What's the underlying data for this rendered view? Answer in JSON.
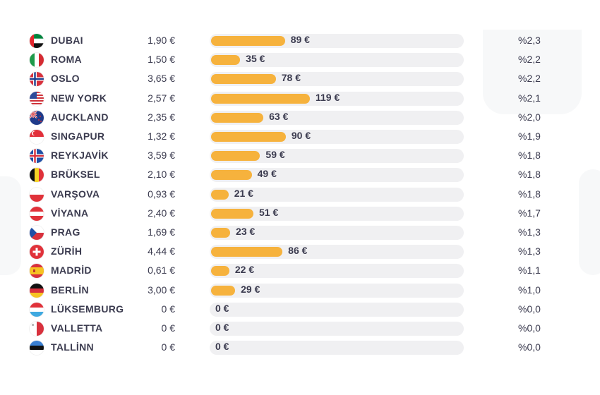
{
  "chart_data": {
    "type": "bar",
    "colors": {
      "bar": "#f6b23d",
      "track": "#f0f0f2",
      "text": "#3b3b4f"
    },
    "xlim": [
      0,
      119
    ],
    "rows": [
      {
        "city": "DUBAI",
        "price": "1,90 €",
        "value": 89,
        "value_label": "89 €",
        "pct": "%2,3",
        "flag": "uae-flag-icon"
      },
      {
        "city": "ROMA",
        "price": "1,50 €",
        "value": 35,
        "value_label": "35 €",
        "pct": "%2,2",
        "flag": "italy-flag-icon"
      },
      {
        "city": "OSLO",
        "price": "3,65 €",
        "value": 78,
        "value_label": "78 €",
        "pct": "%2,2",
        "flag": "norway-flag-icon"
      },
      {
        "city": "NEW YORK",
        "price": "2,57 €",
        "value": 119,
        "value_label": "119 €",
        "pct": "%2,1",
        "flag": "usa-flag-icon"
      },
      {
        "city": "AUCKLAND",
        "price": "2,35 €",
        "value": 63,
        "value_label": "63 €",
        "pct": "%2,0",
        "flag": "new-zealand-flag-icon"
      },
      {
        "city": "SINGAPUR",
        "price": "1,32 €",
        "value": 90,
        "value_label": "90 €",
        "pct": "%1,9",
        "flag": "singapore-flag-icon"
      },
      {
        "city": "REYKJAVİK",
        "price": "3,59 €",
        "value": 59,
        "value_label": "59 €",
        "pct": "%1,8",
        "flag": "iceland-flag-icon"
      },
      {
        "city": "BRÜKSEL",
        "price": "2,10 €",
        "value": 49,
        "value_label": "49 €",
        "pct": "%1,8",
        "flag": "belgium-flag-icon"
      },
      {
        "city": "VARŞOVA",
        "price": "0,93 €",
        "value": 21,
        "value_label": "21 €",
        "pct": "%1,8",
        "flag": "poland-flag-icon"
      },
      {
        "city": "VİYANA",
        "price": "2,40 €",
        "value": 51,
        "value_label": "51 €",
        "pct": "%1,7",
        "flag": "austria-flag-icon"
      },
      {
        "city": "PRAG",
        "price": "1,69 €",
        "value": 23,
        "value_label": "23 €",
        "pct": "%1,3",
        "flag": "czech-flag-icon"
      },
      {
        "city": "ZÜRİH",
        "price": "4,44 €",
        "value": 86,
        "value_label": "86 €",
        "pct": "%1,3",
        "flag": "switzerland-flag-icon"
      },
      {
        "city": "MADRİD",
        "price": "0,61 €",
        "value": 22,
        "value_label": "22 €",
        "pct": "%1,1",
        "flag": "spain-flag-icon"
      },
      {
        "city": "BERLİN",
        "price": "3,00 €",
        "value": 29,
        "value_label": "29 €",
        "pct": "%1,0",
        "flag": "germany-flag-icon"
      },
      {
        "city": "LÜKSEMBURG",
        "price": "0 €",
        "value": 0,
        "value_label": "0 €",
        "pct": "%0,0",
        "flag": "luxembourg-flag-icon"
      },
      {
        "city": "VALLETTA",
        "price": "0 €",
        "value": 0,
        "value_label": "0 €",
        "pct": "%0,0",
        "flag": "malta-flag-icon"
      },
      {
        "city": "TALLİNN",
        "price": "0 €",
        "value": 0,
        "value_label": "0 €",
        "pct": "%0,0",
        "flag": "estonia-flag-icon"
      }
    ]
  }
}
